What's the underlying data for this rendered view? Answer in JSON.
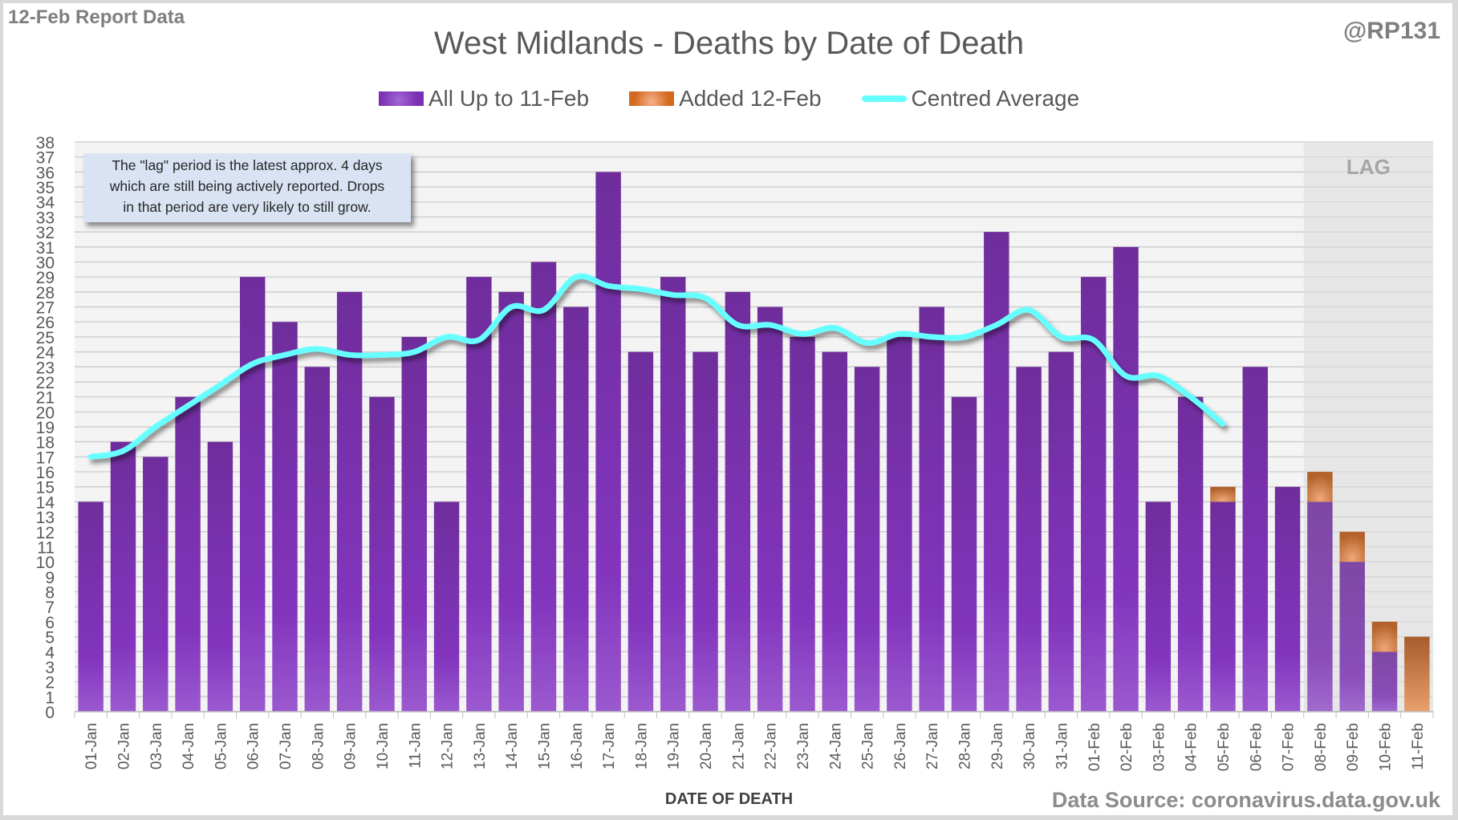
{
  "header": {
    "report_label": "12-Feb Report Data",
    "handle": "@RP131",
    "title": "West Midlands - Deaths by Date of Death"
  },
  "legend": [
    {
      "label": "All Up to 11-Feb",
      "icon": "purple-bar-swatch"
    },
    {
      "label": "Added 12-Feb",
      "icon": "orange-bar-swatch"
    },
    {
      "label": "Centred Average",
      "icon": "cyan-line-swatch"
    }
  ],
  "note": {
    "line1": "The \"lag\" period is the latest approx. 4 days",
    "line2": "which are still being actively reported. Drops",
    "line3": "in that period are very likely to still grow."
  },
  "lag_label": "LAG",
  "footer": {
    "xaxis_title": "DATE OF DEATH",
    "source": "Data Source: coronavirus.data.gov.uk"
  },
  "colors": {
    "existing": "#7030a0",
    "added": "#e07b39",
    "average": "#66ffff",
    "lag_shade": "#e6e6e6"
  },
  "chart_data": {
    "type": "bar",
    "stacked": true,
    "title": "West Midlands - Deaths by Date of Death",
    "xlabel": "DATE OF DEATH",
    "ylabel": "",
    "ylim": [
      0,
      38
    ],
    "yticks": [
      0,
      1,
      2,
      3,
      4,
      5,
      6,
      7,
      8,
      9,
      10,
      11,
      12,
      13,
      14,
      15,
      16,
      17,
      18,
      19,
      20,
      21,
      22,
      23,
      24,
      25,
      26,
      27,
      28,
      29,
      30,
      31,
      32,
      33,
      34,
      35,
      36,
      37,
      38
    ],
    "grid": true,
    "legend_position": "top-center",
    "lag_region": {
      "from": "08-Feb",
      "to": "11-Feb",
      "label": "LAG"
    },
    "categories": [
      "01-Jan",
      "02-Jan",
      "03-Jan",
      "04-Jan",
      "05-Jan",
      "06-Jan",
      "07-Jan",
      "08-Jan",
      "09-Jan",
      "10-Jan",
      "11-Jan",
      "12-Jan",
      "13-Jan",
      "14-Jan",
      "15-Jan",
      "16-Jan",
      "17-Jan",
      "18-Jan",
      "19-Jan",
      "20-Jan",
      "21-Jan",
      "22-Jan",
      "23-Jan",
      "24-Jan",
      "25-Jan",
      "26-Jan",
      "27-Jan",
      "28-Jan",
      "29-Jan",
      "30-Jan",
      "31-Jan",
      "01-Feb",
      "02-Feb",
      "03-Feb",
      "04-Feb",
      "05-Feb",
      "06-Feb",
      "07-Feb",
      "08-Feb",
      "09-Feb",
      "10-Feb",
      "11-Feb"
    ],
    "series": [
      {
        "name": "All Up to 11-Feb",
        "type": "bar",
        "values": [
          14,
          18,
          17,
          21,
          18,
          29,
          26,
          23,
          28,
          21,
          25,
          14,
          29,
          28,
          30,
          27,
          36,
          24,
          29,
          24,
          28,
          27,
          25,
          24,
          23,
          25,
          27,
          21,
          32,
          23,
          24,
          29,
          31,
          14,
          21,
          14,
          23,
          15,
          14,
          10,
          4,
          0
        ]
      },
      {
        "name": "Added 12-Feb",
        "type": "bar",
        "values": [
          0,
          0,
          0,
          0,
          0,
          0,
          0,
          0,
          0,
          0,
          0,
          0,
          0,
          0,
          0,
          0,
          0,
          0,
          0,
          0,
          0,
          0,
          0,
          0,
          0,
          0,
          0,
          0,
          0,
          0,
          0,
          0,
          0,
          0,
          0,
          1,
          0,
          0,
          2,
          2,
          2,
          5
        ]
      },
      {
        "name": "Centred Average",
        "type": "line",
        "values": [
          17.0,
          17.4,
          19.0,
          20.4,
          21.8,
          23.2,
          23.8,
          24.2,
          23.8,
          23.8,
          24.0,
          25.0,
          24.8,
          27.0,
          26.8,
          29.0,
          28.4,
          28.2,
          27.8,
          27.6,
          25.8,
          25.8,
          25.2,
          25.6,
          24.6,
          25.2,
          25.0,
          25.0,
          25.8,
          26.8,
          25.0,
          24.8,
          22.4,
          22.4,
          21.0,
          19.2,
          null,
          null,
          null,
          null,
          null,
          null
        ]
      }
    ]
  }
}
